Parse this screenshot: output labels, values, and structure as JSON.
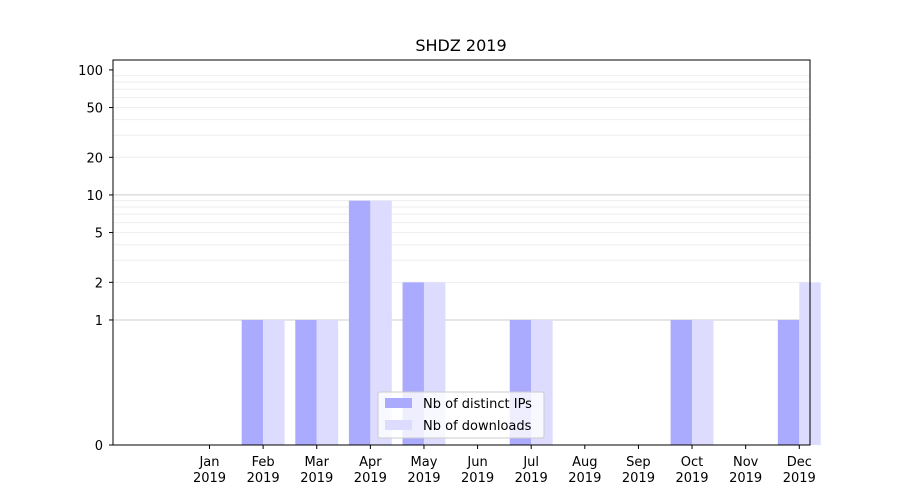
{
  "chart_data": {
    "type": "bar",
    "title": "SHDZ 2019",
    "xlabel": "",
    "ylabel": "",
    "y_scale": "symlog",
    "ylim": [
      0,
      120
    ],
    "y_ticks": [
      0,
      1,
      2,
      5,
      10,
      20,
      50,
      100
    ],
    "categories": [
      "Jan\n2019",
      "Feb\n2019",
      "Mar\n2019",
      "Apr\n2019",
      "May\n2019",
      "Jun\n2019",
      "Jul\n2019",
      "Aug\n2019",
      "Sep\n2019",
      "Oct\n2019",
      "Nov\n2019",
      "Dec\n2019"
    ],
    "series": [
      {
        "name": "Nb of distinct IPs",
        "color": "#aaaaff",
        "values": [
          0,
          1,
          1,
          9,
          2,
          0,
          1,
          0,
          0,
          1,
          0,
          1
        ]
      },
      {
        "name": "Nb of downloads",
        "color": "#dddcff",
        "values": [
          0,
          1,
          1,
          9,
          2,
          0,
          1,
          0,
          0,
          1,
          0,
          2
        ]
      }
    ],
    "grid": true,
    "legend_position": "bottom-center"
  }
}
